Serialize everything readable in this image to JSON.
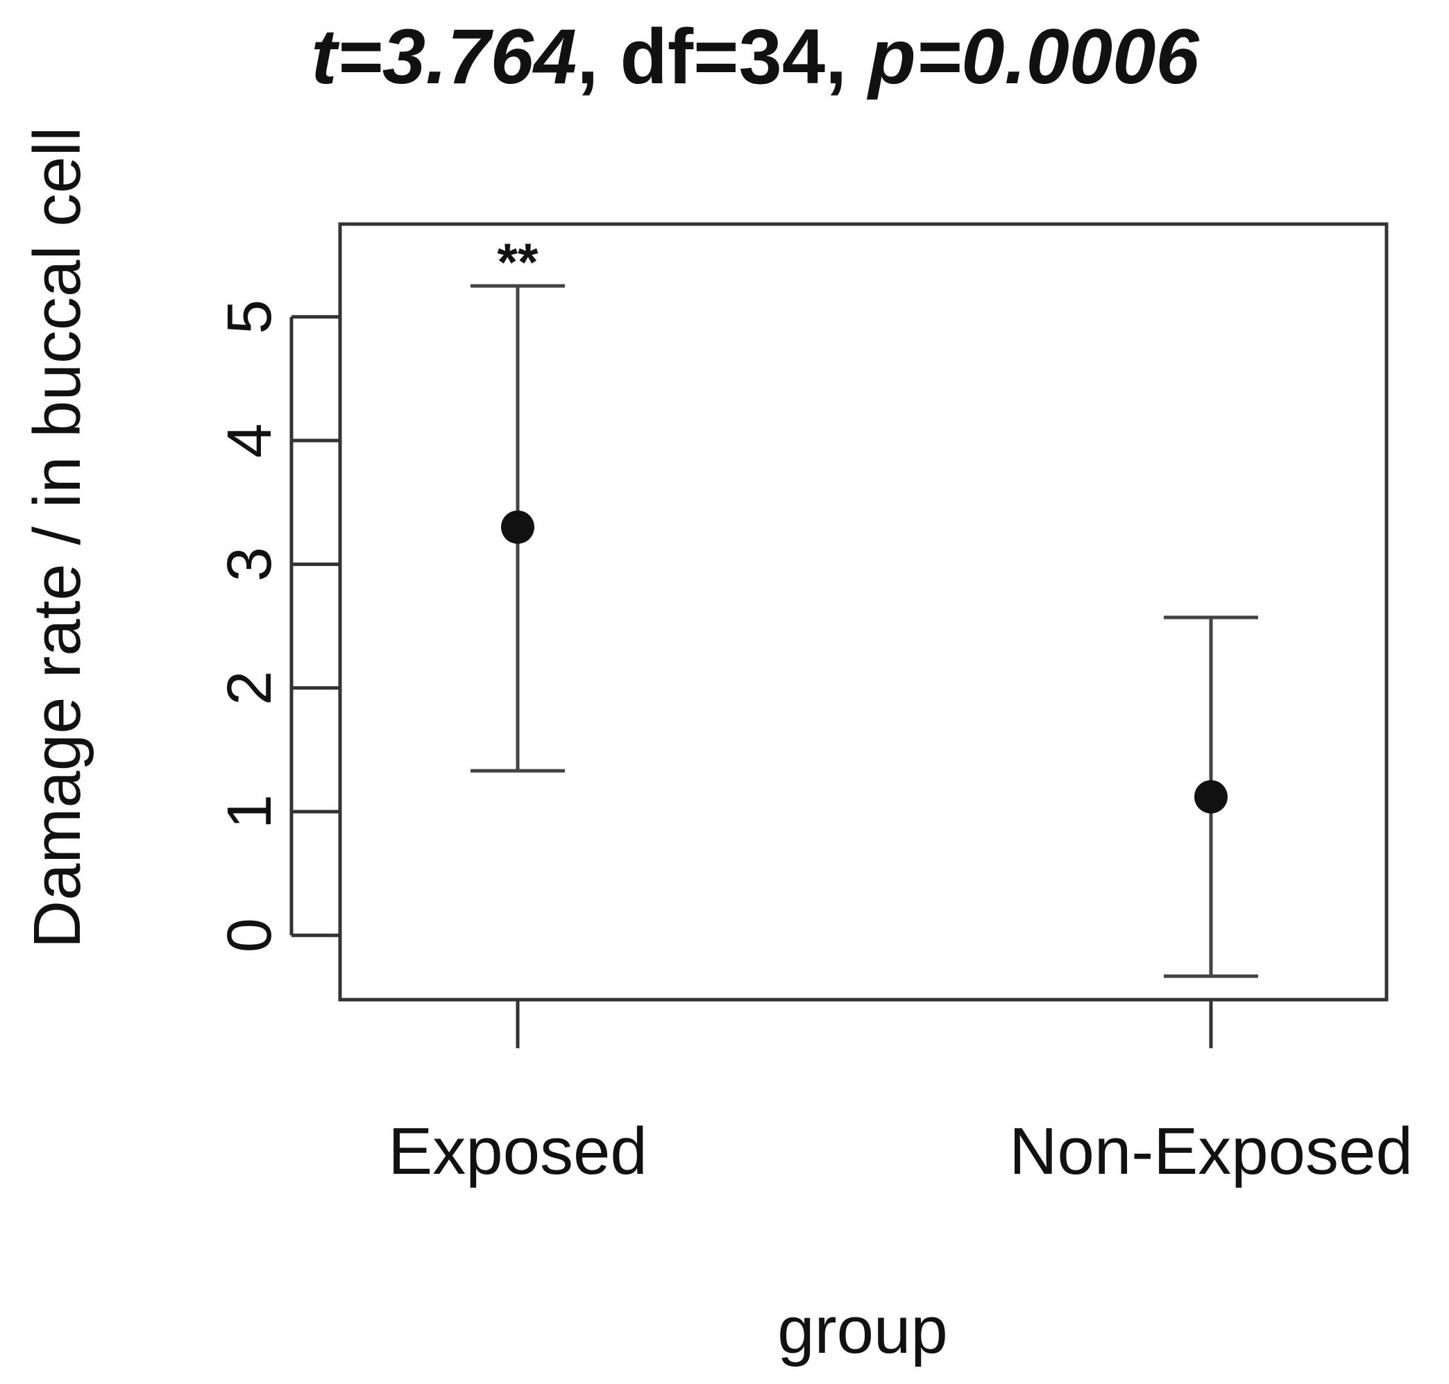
{
  "chart_data": {
    "type": "errorbar",
    "title_parts": [
      {
        "text": "t=3.764",
        "italic": true
      },
      {
        "text": ", df=34, ",
        "italic": false
      },
      {
        "text": "p=0.0006",
        "italic": true
      }
    ],
    "xlabel": "group",
    "ylabel": "Damage rate   / in buccal cell",
    "categories": [
      "Exposed",
      "Non-Exposed"
    ],
    "series": [
      {
        "points": [
          {
            "category": "Exposed",
            "mean": 3.3,
            "lower": 1.33,
            "upper": 5.25,
            "annotation": "**"
          },
          {
            "category": "Non-Exposed",
            "mean": 1.12,
            "lower": -0.33,
            "upper": 2.57,
            "annotation": ""
          }
        ]
      }
    ],
    "ylim": [
      -0.52,
      5.75
    ],
    "yticks": [
      0,
      1,
      2,
      3,
      4,
      5
    ],
    "grid": false,
    "legend": "none",
    "colors": {
      "marks": "#111111",
      "errorbar": "#444444"
    }
  }
}
